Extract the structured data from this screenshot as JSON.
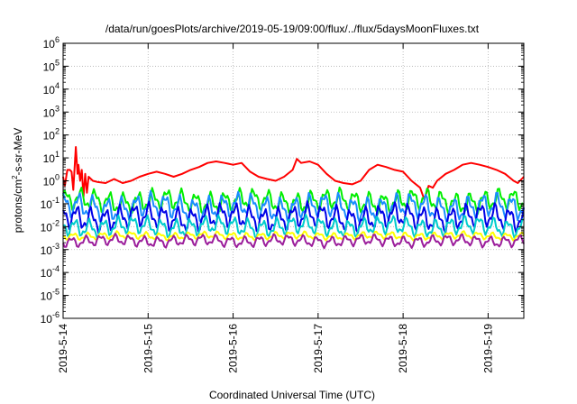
{
  "chart_data": {
    "type": "line",
    "title": "/data/run/goesPlots/archive/2019-05-19/09:00/flux/../flux/5daysMoonFluxes.txt",
    "xlabel": "Coordinated Universal Time (UTC)",
    "ylabel": {
      "pre": "protons/cm",
      "sup": "2",
      "post": "-s-sr-MeV"
    },
    "y_scale": "log",
    "ylim_exponents": [
      -6,
      6
    ],
    "y_ticks": [
      {
        "base": "10",
        "exp": "-6"
      },
      {
        "base": "10",
        "exp": "-5"
      },
      {
        "base": "10",
        "exp": "-4"
      },
      {
        "base": "10",
        "exp": "-3"
      },
      {
        "base": "10",
        "exp": "-2"
      },
      {
        "base": "10",
        "exp": "-1"
      },
      {
        "base": "10",
        "exp": "0"
      },
      {
        "base": "10",
        "exp": "1"
      },
      {
        "base": "10",
        "exp": "2"
      },
      {
        "base": "10",
        "exp": "3"
      },
      {
        "base": "10",
        "exp": "4"
      },
      {
        "base": "10",
        "exp": "5"
      },
      {
        "base": "10",
        "exp": "6"
      }
    ],
    "x_ticks": [
      "2019-5-14",
      "2019-5-15",
      "2019-5-16",
      "2019-5-17",
      "2019-5-18",
      "2019-5-19"
    ],
    "x_range_days": [
      0,
      5.42
    ],
    "grid": true,
    "legend": "none",
    "series": [
      {
        "color": "#ff0000",
        "x": [
          0,
          0.02,
          0.05,
          0.08,
          0.1,
          0.12,
          0.15,
          0.17,
          0.18,
          0.2,
          0.22,
          0.24,
          0.26,
          0.28,
          0.3,
          0.35,
          0.4,
          0.5,
          0.6,
          0.7,
          0.8,
          0.9,
          1.0,
          1.1,
          1.2,
          1.3,
          1.4,
          1.5,
          1.6,
          1.7,
          1.8,
          1.9,
          2.0,
          2.1,
          2.2,
          2.3,
          2.4,
          2.5,
          2.6,
          2.7,
          2.75,
          2.8,
          2.9,
          3.0,
          3.1,
          3.2,
          3.3,
          3.4,
          3.5,
          3.6,
          3.7,
          3.8,
          3.9,
          4.0,
          4.1,
          4.2,
          4.25,
          4.3,
          4.35,
          4.4,
          4.5,
          4.6,
          4.7,
          4.8,
          4.9,
          5.0,
          5.1,
          5.2,
          5.3,
          5.35,
          5.42
        ],
        "y": [
          1.5,
          0.6,
          3,
          3,
          2.5,
          0.4,
          30,
          2,
          5,
          1,
          3,
          0.2,
          2,
          0.3,
          1.5,
          1,
          0.9,
          0.8,
          1.2,
          0.8,
          1,
          1.5,
          2,
          2.5,
          2,
          1.5,
          2,
          3,
          4,
          6,
          7,
          6,
          5,
          6,
          2.5,
          1.5,
          1.2,
          1,
          1.5,
          3,
          9,
          6,
          7,
          5,
          2,
          1,
          0.8,
          0.7,
          1,
          3,
          5,
          4,
          3,
          2.5,
          1,
          0.5,
          0.15,
          0.6,
          0.5,
          1,
          2,
          3,
          5,
          6,
          5,
          4,
          3,
          2,
          1,
          0.8,
          1.5
        ]
      },
      {
        "color": "#00ee00",
        "base": 0.13,
        "amp": 0.35,
        "phase": 0.3
      },
      {
        "color": "#1a8cff",
        "base": 0.07,
        "amp": 0.4,
        "phase": 1.1
      },
      {
        "color": "#0000e6",
        "base": 0.025,
        "amp": 0.4,
        "phase": 2.0
      },
      {
        "color": "#00cccc",
        "base": 0.01,
        "amp": 0.3,
        "phase": 2.7
      },
      {
        "color": "#ffff00",
        "base": 0.004,
        "amp": 0.12,
        "phase": 3.3
      },
      {
        "color": "#9b1d9b",
        "base": 0.0024,
        "amp": 0.18,
        "phase": 4.1
      }
    ]
  }
}
